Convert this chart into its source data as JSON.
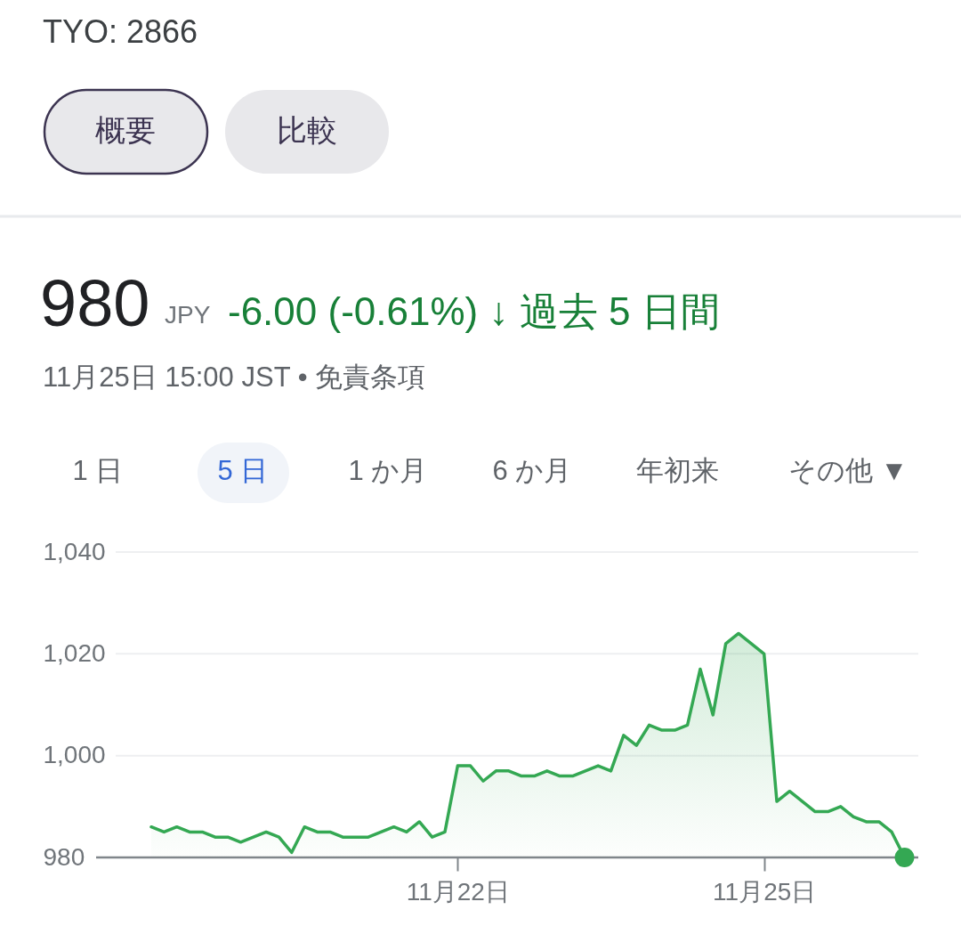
{
  "chart_data": {
    "type": "area",
    "title": "TYO: 2866",
    "annotations": [
      "概要",
      "比較",
      "980",
      "JPY",
      "-6.00 (-0.61%) ↓ 過去 5 日間",
      "11月25日 15:00 JST • 免責条項",
      "1 日",
      "5 日",
      "1 か月",
      "6 か月",
      "年初来",
      "その他 ▼"
    ],
    "categories": [
      null,
      null,
      null,
      null,
      null,
      null,
      null,
      null,
      null,
      null,
      null,
      null,
      null,
      null,
      null,
      null,
      null,
      null,
      null,
      null,
      null,
      null,
      null,
      null,
      "11月22日",
      null,
      null,
      null,
      null,
      null,
      null,
      null,
      null,
      null,
      null,
      null,
      null,
      null,
      null,
      null,
      null,
      null,
      null,
      null,
      null,
      null,
      null,
      null,
      "11月25日",
      null,
      null,
      null,
      null,
      null,
      null,
      null,
      null,
      null,
      null,
      null
    ],
    "series": [
      {
        "color": "#34a853",
        "values": [
          986,
          985,
          986,
          985,
          985,
          984,
          984,
          983,
          984,
          985,
          984,
          981,
          986,
          985,
          985,
          984,
          984,
          984,
          985,
          986,
          985,
          987,
          984,
          985,
          998,
          998,
          995,
          997,
          997,
          996,
          996,
          997,
          996,
          996,
          997,
          998,
          997,
          1004,
          1002,
          1006,
          1005,
          1005,
          1006,
          1017,
          1008,
          1022,
          1024,
          1022,
          1020,
          991,
          993,
          991,
          989,
          989,
          990,
          988,
          987,
          987,
          985,
          980
        ]
      },
      {
        "type": "scatter",
        "color": "#34a853",
        "values": [
          null,
          null,
          null,
          null,
          null,
          null,
          null,
          null,
          null,
          null,
          null,
          null,
          null,
          null,
          null,
          null,
          null,
          null,
          null,
          null,
          null,
          null,
          null,
          null,
          null,
          null,
          null,
          null,
          null,
          null,
          null,
          null,
          null,
          null,
          null,
          null,
          null,
          null,
          null,
          null,
          null,
          null,
          null,
          null,
          null,
          null,
          null,
          null,
          null,
          null,
          null,
          null,
          null,
          null,
          null,
          null,
          null,
          null,
          null,
          980
        ]
      }
    ],
    "ylim": [
      980,
      1040
    ],
    "yticks": [
      980,
      {
        "value": 1000,
        "label": "1,000"
      },
      {
        "value": 1020,
        "label": "1,020"
      },
      {
        "value": 1040,
        "label": "1,040"
      }
    ],
    "grid": "y"
  }
}
